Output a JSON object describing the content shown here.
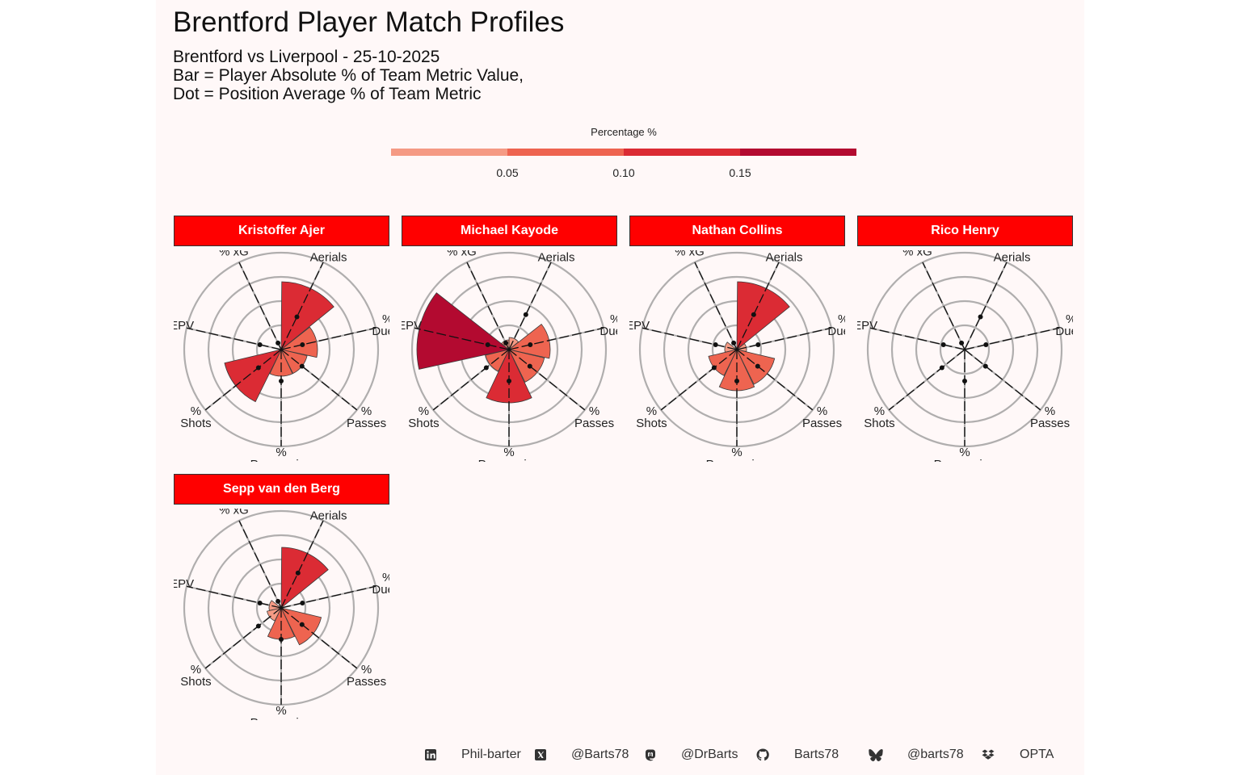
{
  "title": "Brentford Player Match Profiles",
  "subtitle_lines": [
    "Brentford vs Liverpool - 25-10-2025",
    "Bar = Player Absolute % of Team Metric Value,",
    "Dot = Position Average % of Team Metric"
  ],
  "legend": {
    "title": "Percentage %",
    "ticks": [
      "0.05",
      "0.10",
      "0.15"
    ],
    "colors": [
      "#f59a84",
      "#ee6450",
      "#db2b34",
      "#b30a30"
    ]
  },
  "colors": {
    "strip": "#ff0000",
    "panel_bg": "#fff8f8",
    "grid": "#b0aeae",
    "bar_border": "#3a3a3a"
  },
  "footer": {
    "items": [
      {
        "icon": "linkedin-icon",
        "text": "Phil-barter"
      },
      {
        "icon": "x-icon",
        "text": "@Barts78"
      },
      {
        "icon": "mastodon-icon",
        "text": "@DrBarts"
      },
      {
        "icon": "github-icon",
        "text": "Barts78"
      },
      {
        "icon": "bluesky-icon",
        "text": "@barts78"
      },
      {
        "icon": "dropbox-icon",
        "text": "OPTA"
      }
    ]
  },
  "chart_data": {
    "type": "polar-bar",
    "title": "Brentford Player Match Profiles",
    "metrics": [
      {
        "top": "%",
        "bottom": "Aerials"
      },
      {
        "top": "%",
        "bottom": "Duels"
      },
      {
        "top": "%",
        "bottom": "Passes"
      },
      {
        "top": "%",
        "bottom": "Possession"
      },
      {
        "top": "%",
        "bottom": "Shots"
      },
      {
        "top": "",
        "bottom": "% EPV"
      },
      {
        "top": "",
        "bottom": "% xG"
      }
    ],
    "rlim": [
      0,
      0.2
    ],
    "players": [
      {
        "name": "Kristoffer Ajer",
        "values": [
          0.14,
          0.075,
          0.055,
          0.055,
          0.12,
          0.0,
          0.0
        ],
        "avg": [
          0.075,
          0.045,
          0.055,
          0.065,
          0.06,
          0.045,
          0.015
        ]
      },
      {
        "name": "Michael Kayode",
        "values": [
          0.025,
          0.085,
          0.075,
          0.11,
          0.05,
          0.19,
          0.02
        ],
        "avg": [
          0.08,
          0.045,
          0.055,
          0.065,
          0.06,
          0.045,
          0.015
        ]
      },
      {
        "name": "Nathan Collins",
        "values": [
          0.14,
          0.02,
          0.08,
          0.085,
          0.06,
          0.025,
          0.0
        ],
        "avg": [
          0.08,
          0.045,
          0.055,
          0.065,
          0.06,
          0.045,
          0.015
        ]
      },
      {
        "name": "Rico Henry",
        "values": [
          0,
          0,
          0,
          0,
          0,
          0,
          0
        ],
        "avg": [
          0.075,
          0.045,
          0.055,
          0.065,
          0.06,
          0.045,
          0.015
        ]
      },
      {
        "name": "Sepp van den Berg",
        "values": [
          0.125,
          0.0,
          0.085,
          0.065,
          0.03,
          0.025,
          0.0
        ],
        "avg": [
          0.08,
          0.045,
          0.055,
          0.065,
          0.06,
          0.045,
          0.015
        ]
      }
    ]
  }
}
